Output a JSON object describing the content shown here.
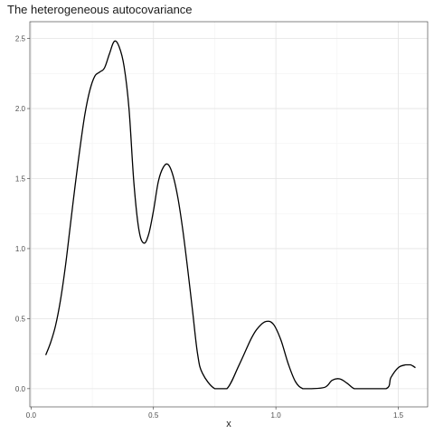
{
  "chart_data": {
    "type": "line",
    "title": "The heterogeneous autocovariance",
    "xlabel": "x",
    "ylabel": "",
    "xlim": [
      -0.005,
      1.62
    ],
    "ylim": [
      -0.13,
      2.62
    ],
    "x_ticks": [
      0.0,
      0.5,
      1.0,
      1.5
    ],
    "x_tick_labels": [
      "0.0",
      "0.5",
      "1.0",
      "1.5"
    ],
    "y_ticks": [
      0.0,
      0.5,
      1.0,
      1.5,
      2.0,
      2.5
    ],
    "y_tick_labels": [
      "0.0",
      "0.5",
      "1.0",
      "1.5",
      "2.0",
      "2.5"
    ],
    "grid": true,
    "line_color": "#000000",
    "series": [
      {
        "x": [
          0.06,
          0.08,
          0.1,
          0.12,
          0.14,
          0.16,
          0.18,
          0.2,
          0.22,
          0.24,
          0.26,
          0.28,
          0.3,
          0.32,
          0.34,
          0.36,
          0.38,
          0.4,
          0.42,
          0.44,
          0.46,
          0.48,
          0.5,
          0.52,
          0.54,
          0.56,
          0.58,
          0.6,
          0.62,
          0.64,
          0.66,
          0.68,
          0.7,
          0.75,
          0.8,
          0.85,
          0.9,
          0.93,
          0.96,
          0.99,
          1.02,
          1.05,
          1.08,
          1.11,
          1.14,
          1.2,
          1.23,
          1.26,
          1.29,
          1.32,
          1.35,
          1.45,
          1.47,
          1.5,
          1.53,
          1.55,
          1.57
        ],
        "y": [
          0.24,
          0.33,
          0.45,
          0.63,
          0.87,
          1.16,
          1.45,
          1.72,
          1.96,
          2.13,
          2.23,
          2.26,
          2.29,
          2.39,
          2.48,
          2.44,
          2.3,
          2.0,
          1.47,
          1.14,
          1.04,
          1.1,
          1.27,
          1.48,
          1.58,
          1.6,
          1.52,
          1.36,
          1.13,
          0.85,
          0.55,
          0.25,
          0.11,
          0.0,
          0.0,
          0.17,
          0.36,
          0.44,
          0.48,
          0.46,
          0.35,
          0.18,
          0.05,
          0.0,
          0.0,
          0.01,
          0.06,
          0.07,
          0.04,
          0.0,
          0.0,
          0.0,
          0.08,
          0.15,
          0.17,
          0.17,
          0.15
        ]
      }
    ]
  }
}
